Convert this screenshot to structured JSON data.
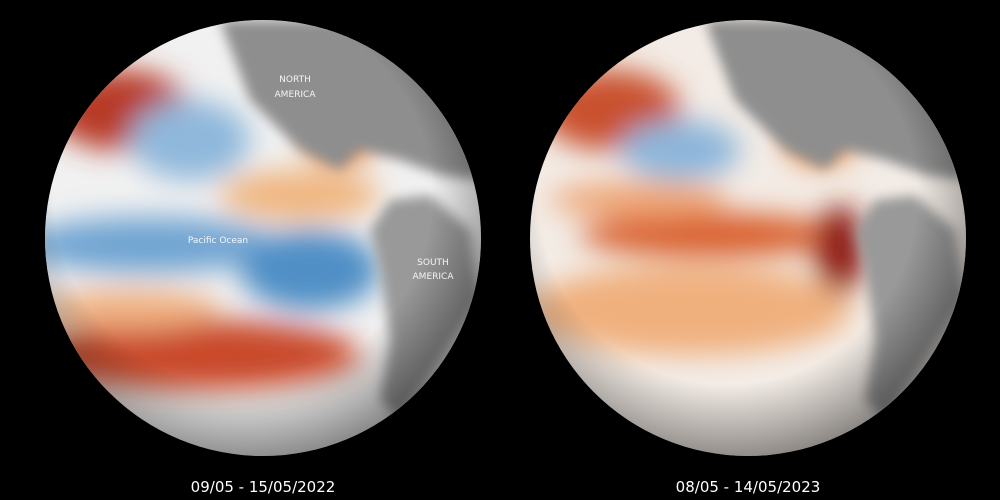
{
  "globes": [
    {
      "date": "09/05 - 15/05/2022",
      "labels": [
        {
          "lines": [
            "NORTH",
            "AMERICA"
          ]
        },
        {
          "lines": [
            "Pacific Ocean"
          ]
        },
        {
          "lines": [
            "SOUTH",
            "AMERICA"
          ]
        }
      ]
    },
    {
      "date": "08/05 - 14/05/2023",
      "labels": []
    }
  ]
}
